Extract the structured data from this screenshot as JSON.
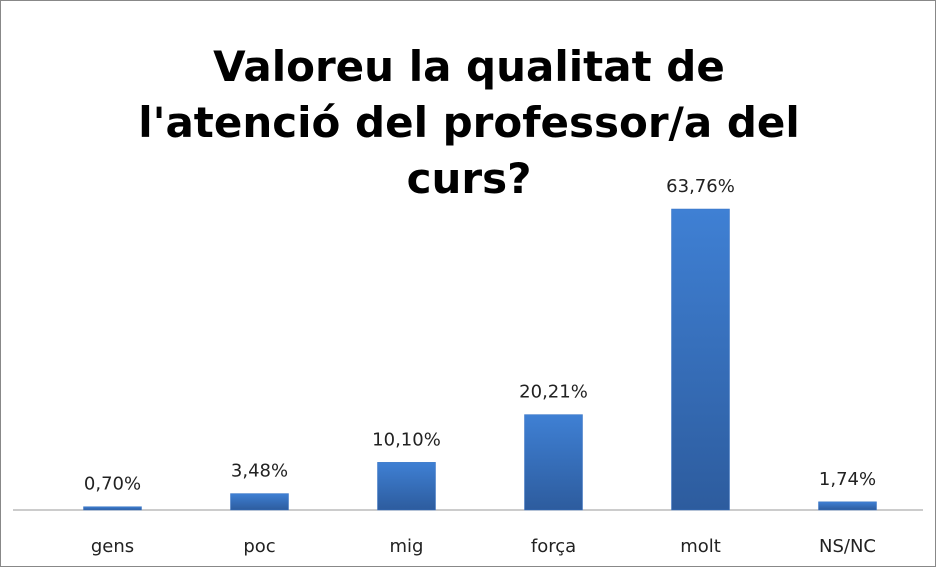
{
  "chart_data": {
    "type": "bar",
    "title": "Valoreu la qualitat de l'atenció del professor/a del curs?",
    "categories": [
      "gens",
      "poc",
      "mig",
      "força",
      "molt",
      "NS/NC"
    ],
    "values": [
      0.7,
      3.48,
      10.1,
      20.21,
      63.76,
      1.74
    ],
    "value_labels": [
      "0,70%",
      "3,48%",
      "10,10%",
      "20,21%",
      "63,76%",
      "1,74%"
    ],
    "color": "#3a75c4"
  }
}
